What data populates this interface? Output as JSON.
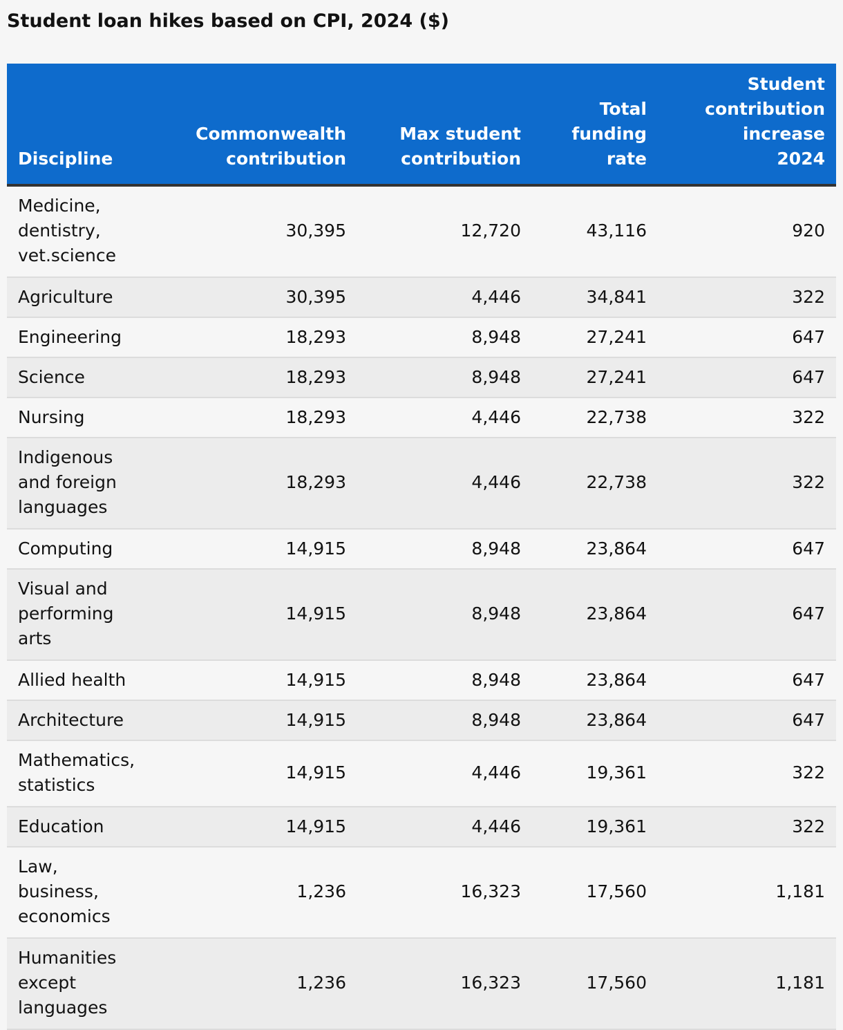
{
  "chart_data": {
    "type": "table",
    "title": "Student loan hikes based on CPI, 2024 ($)",
    "columns": [
      "Discipline",
      "Commonwealth contribution",
      "Max student contribution",
      "Total funding rate",
      "Student contribution increase 2024"
    ],
    "rows": [
      [
        "Medicine, dentistry, vet.science",
        "30,395",
        "12,720",
        "43,116",
        "920"
      ],
      [
        "Agriculture",
        "30,395",
        "4,446",
        "34,841",
        "322"
      ],
      [
        "Engineering",
        "18,293",
        "8,948",
        "27,241",
        "647"
      ],
      [
        "Science",
        "18,293",
        "8,948",
        "27,241",
        "647"
      ],
      [
        "Nursing",
        "18,293",
        "4,446",
        "22,738",
        "322"
      ],
      [
        "Indigenous and foreign languages",
        "18,293",
        "4,446",
        "22,738",
        "322"
      ],
      [
        "Computing",
        "14,915",
        "8,948",
        "23,864",
        "647"
      ],
      [
        "Visual and performing arts",
        "14,915",
        "8,948",
        "23,864",
        "647"
      ],
      [
        "Allied health",
        "14,915",
        "8,948",
        "23,864",
        "647"
      ],
      [
        "Architecture",
        "14,915",
        "8,948",
        "23,864",
        "647"
      ],
      [
        "Mathematics, statistics",
        "14,915",
        "4,446",
        "19,361",
        "322"
      ],
      [
        "Education",
        "14,915",
        "4,446",
        "19,361",
        "322"
      ],
      [
        "Law, business, economics",
        "1,236",
        "16,323",
        "17,560",
        "1,181"
      ],
      [
        "Humanities except languages",
        "1,236",
        "16,323",
        "17,560",
        "1,181"
      ]
    ],
    "header_color": "#0e6bcc"
  }
}
